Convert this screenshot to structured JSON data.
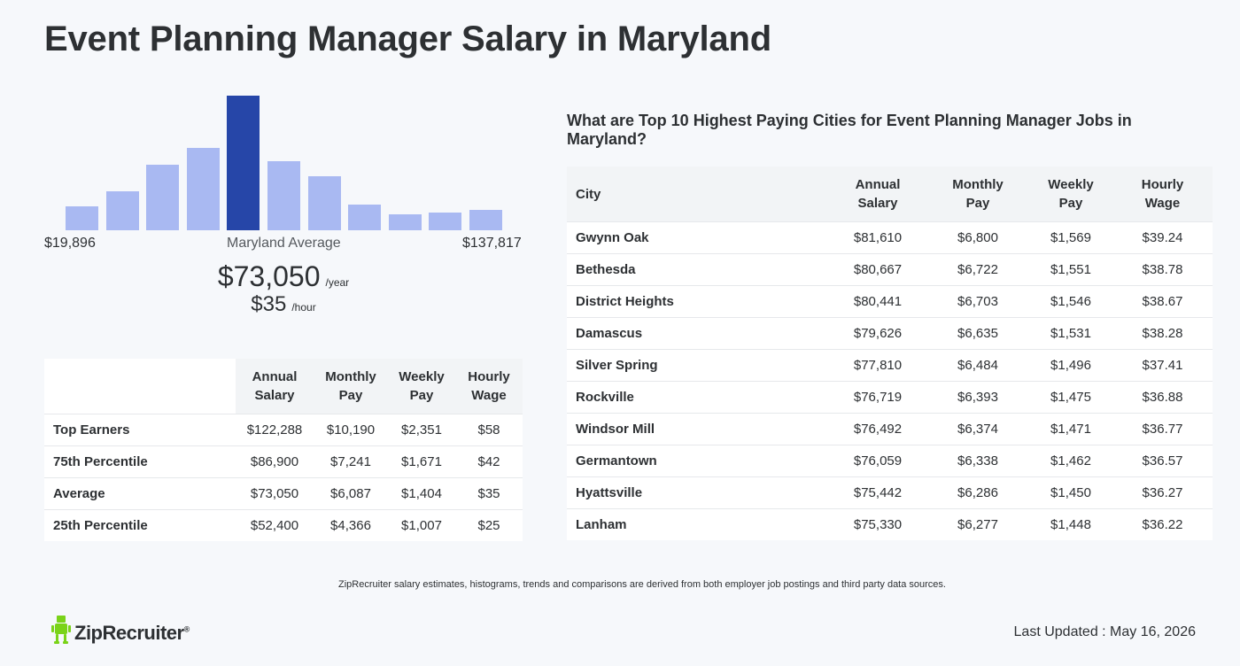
{
  "page": {
    "title": "Event Planning Manager Salary in Maryland"
  },
  "histogram": {
    "bar_values": [
      0.18,
      0.29,
      0.49,
      0.61,
      1.0,
      0.51,
      0.4,
      0.19,
      0.12,
      0.13,
      0.15
    ],
    "highlighted_index": 4,
    "min_label": "$19,896",
    "average_label": "Maryland Average",
    "max_label": "$137,817",
    "colors": {
      "bar": "#a9b9f2",
      "highlight": "#2646a8"
    }
  },
  "average": {
    "yearly": "$73,050",
    "yearly_unit": "/year",
    "hourly": "$35",
    "hourly_unit": "/hour"
  },
  "percentile_table": {
    "headers": [
      {
        "line1": "Annual",
        "line2": "Salary"
      },
      {
        "line1": "Monthly",
        "line2": "Pay"
      },
      {
        "line1": "Weekly",
        "line2": "Pay"
      },
      {
        "line1": "Hourly",
        "line2": "Wage"
      }
    ],
    "rows": [
      {
        "label": "Top Earners",
        "values": [
          "$122,288",
          "$10,190",
          "$2,351",
          "$58"
        ]
      },
      {
        "label": "75th Percentile",
        "values": [
          "$86,900",
          "$7,241",
          "$1,671",
          "$42"
        ]
      },
      {
        "label": "Average",
        "values": [
          "$73,050",
          "$6,087",
          "$1,404",
          "$35"
        ]
      },
      {
        "label": "25th Percentile",
        "values": [
          "$52,400",
          "$4,366",
          "$1,007",
          "$25"
        ]
      }
    ]
  },
  "cities": {
    "heading": "What are Top 10 Highest Paying Cities for Event Planning Manager Jobs in Maryland?",
    "headers": {
      "city": "City",
      "cols": [
        {
          "line1": "Annual",
          "line2": "Salary"
        },
        {
          "line1": "Monthly",
          "line2": "Pay"
        },
        {
          "line1": "Weekly",
          "line2": "Pay"
        },
        {
          "line1": "Hourly",
          "line2": "Wage"
        }
      ]
    },
    "rows": [
      {
        "city": "Gwynn Oak",
        "values": [
          "$81,610",
          "$6,800",
          "$1,569",
          "$39.24"
        ]
      },
      {
        "city": "Bethesda",
        "values": [
          "$80,667",
          "$6,722",
          "$1,551",
          "$38.78"
        ]
      },
      {
        "city": "District Heights",
        "values": [
          "$80,441",
          "$6,703",
          "$1,546",
          "$38.67"
        ]
      },
      {
        "city": "Damascus",
        "values": [
          "$79,626",
          "$6,635",
          "$1,531",
          "$38.28"
        ]
      },
      {
        "city": "Silver Spring",
        "values": [
          "$77,810",
          "$6,484",
          "$1,496",
          "$37.41"
        ]
      },
      {
        "city": "Rockville",
        "values": [
          "$76,719",
          "$6,393",
          "$1,475",
          "$36.88"
        ]
      },
      {
        "city": "Windsor Mill",
        "values": [
          "$76,492",
          "$6,374",
          "$1,471",
          "$36.77"
        ]
      },
      {
        "city": "Germantown",
        "values": [
          "$76,059",
          "$6,338",
          "$1,462",
          "$36.57"
        ]
      },
      {
        "city": "Hyattsville",
        "values": [
          "$75,442",
          "$6,286",
          "$1,450",
          "$36.27"
        ]
      },
      {
        "city": "Lanham",
        "values": [
          "$75,330",
          "$6,277",
          "$1,448",
          "$36.22"
        ]
      }
    ]
  },
  "footer": {
    "disclaimer": "ZipRecruiter salary estimates, histograms, trends and comparisons are derived from both employer job postings and third party data sources.",
    "brand": "ZipRecruiter",
    "brand_reg": "®",
    "brand_icon": "ziprecruiter-mascot-icon",
    "brand_color": "#7ad319",
    "last_updated": "Last Updated : May 16, 2026"
  }
}
